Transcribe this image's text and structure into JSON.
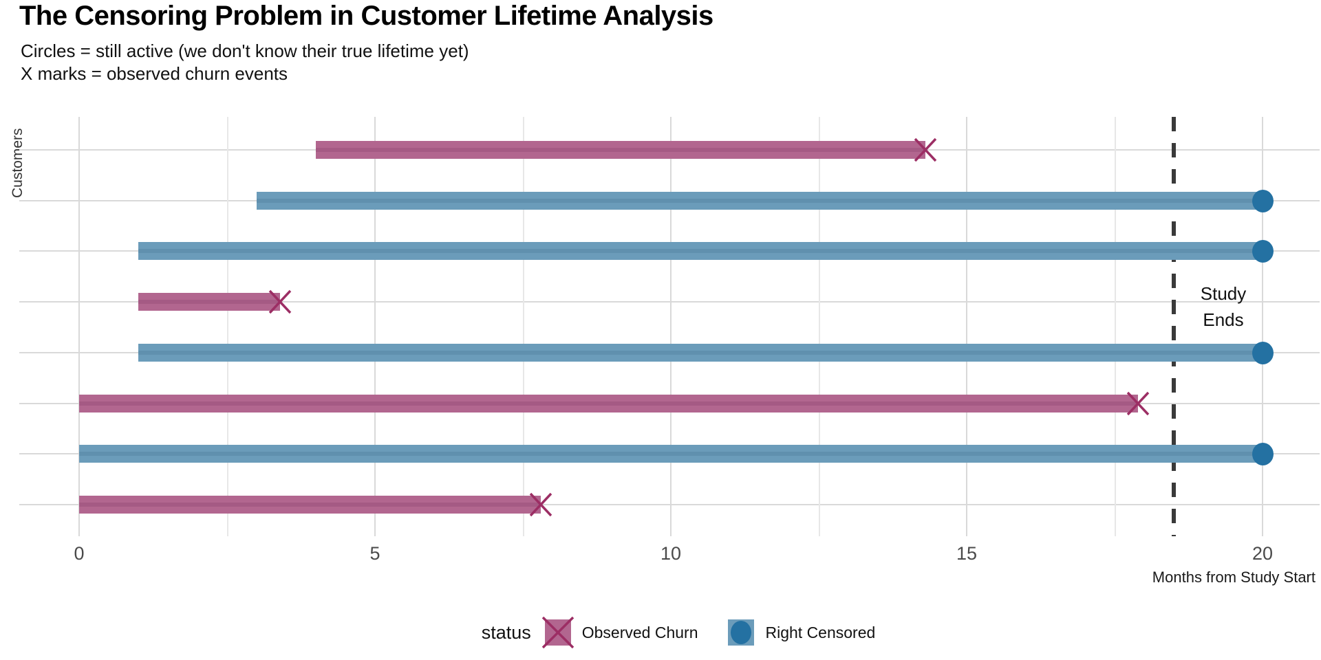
{
  "chart_data": {
    "type": "bar",
    "orientation": "horizontal",
    "title": "The Censoring Problem in Customer Lifetime Analysis",
    "subtitle1": "Circles = still active (we don't know their true lifetime yet)",
    "subtitle2": "X marks = observed churn events",
    "xlabel": "Months from Study Start",
    "ylabel": "Customers",
    "xlim": [
      -1,
      20.6
    ],
    "x_major_ticks": [
      0,
      5,
      10,
      15,
      20
    ],
    "x_minor_ticks": [
      2.5,
      7.5,
      12.5,
      17.5
    ],
    "grid": true,
    "study_end": {
      "month": 18.5,
      "label_lines": [
        "Study",
        "Ends"
      ]
    },
    "legend": {
      "title": "status",
      "position": "bottom",
      "items": [
        {
          "label": "Observed Churn",
          "marker": "x",
          "status_key": "churn"
        },
        {
          "label": "Right Censored",
          "marker": "circle",
          "status_key": "censored"
        }
      ]
    },
    "customers": [
      {
        "start_month": 4,
        "end_month": 14.3,
        "status": "Observed Churn"
      },
      {
        "start_month": 3,
        "end_month": 20,
        "status": "Right Censored"
      },
      {
        "start_month": 1,
        "end_month": 20,
        "status": "Right Censored"
      },
      {
        "start_month": 1,
        "end_month": 3.4,
        "status": "Observed Churn"
      },
      {
        "start_month": 1,
        "end_month": 20,
        "status": "Right Censored"
      },
      {
        "start_month": 0,
        "end_month": 17.9,
        "status": "Observed Churn"
      },
      {
        "start_month": 0,
        "end_month": 20,
        "status": "Right Censored"
      },
      {
        "start_month": 0,
        "end_month": 7.8,
        "status": "Observed Churn"
      }
    ],
    "colors": {
      "churn_bar": "#b2668f",
      "churn_stripe": "#a55a84",
      "churn_mark": "#9c2e64",
      "censored_bar": "#6b9cba",
      "censored_stripe": "#6090ae",
      "censored_mark": "#2471a2",
      "grid_major": "#d9d9d9",
      "grid_minor": "#e7e7e7",
      "dashed_line": "#3a3a3a",
      "tick_text": "#4a4a4a",
      "background": "#ffffff"
    }
  }
}
